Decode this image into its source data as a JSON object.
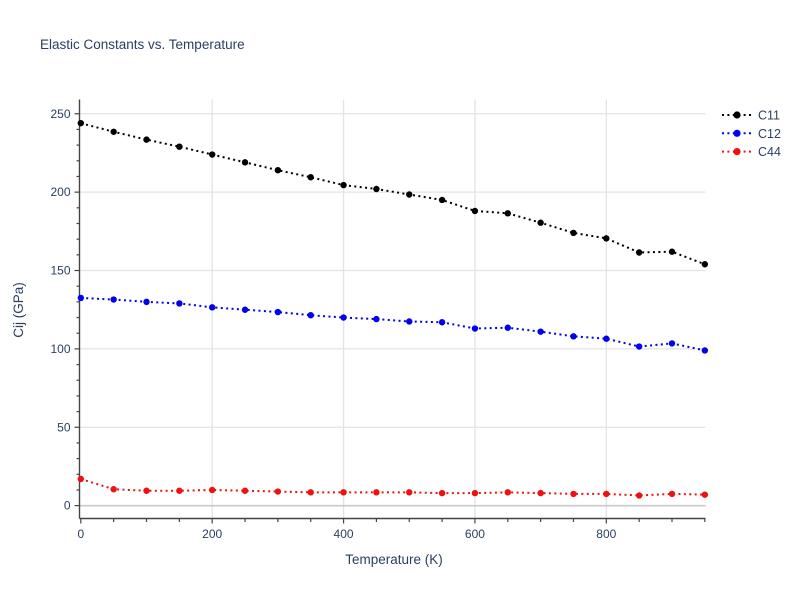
{
  "chart_data": {
    "type": "line",
    "title": "Elastic Constants vs. Temperature",
    "xlabel": "Temperature (K)",
    "ylabel": "Cij (GPa)",
    "x": [
      0,
      50,
      100,
      150,
      200,
      250,
      300,
      350,
      400,
      450,
      500,
      550,
      600,
      650,
      700,
      750,
      800,
      850,
      900,
      950
    ],
    "series": [
      {
        "name": "C11",
        "color": "#000000",
        "values": [
          244,
          238.5,
          233.5,
          229,
          224,
          219,
          214,
          209.5,
          204.5,
          202,
          198.5,
          195,
          188,
          186.5,
          180.5,
          174,
          170.5,
          161.5,
          162,
          154
        ]
      },
      {
        "name": "C12",
        "color": "#0000ee",
        "values": [
          132.5,
          131.5,
          130,
          129,
          126.5,
          125,
          123.5,
          121.5,
          120,
          119,
          117.5,
          117,
          113,
          113.5,
          111,
          108,
          106.5,
          101.5,
          103.5,
          99
        ]
      },
      {
        "name": "C44",
        "color": "#ee1111",
        "values": [
          17,
          10.5,
          9.5,
          9.5,
          10,
          9.5,
          9,
          8.5,
          8.5,
          8.5,
          8.5,
          8,
          8,
          8.5,
          8,
          7.5,
          7.5,
          6.5,
          7.5,
          7
        ]
      }
    ],
    "xticks": [
      0,
      200,
      400,
      600,
      800
    ],
    "yticks": [
      0,
      50,
      100,
      150,
      200,
      250
    ],
    "x_minor_step": 50,
    "y_minor_step": 10,
    "xlim": [
      -2,
      951
    ],
    "ylim": [
      -8.2,
      259.1
    ],
    "grid": true,
    "line_style": "dotted",
    "marker": "circle",
    "legend_position": "top-right-outside",
    "colors": {
      "text": "#2a3f5f",
      "axis": "#444444",
      "grid": "#e3e3e3",
      "zeroline": "#c9c9c9",
      "background": "#ffffff"
    }
  }
}
